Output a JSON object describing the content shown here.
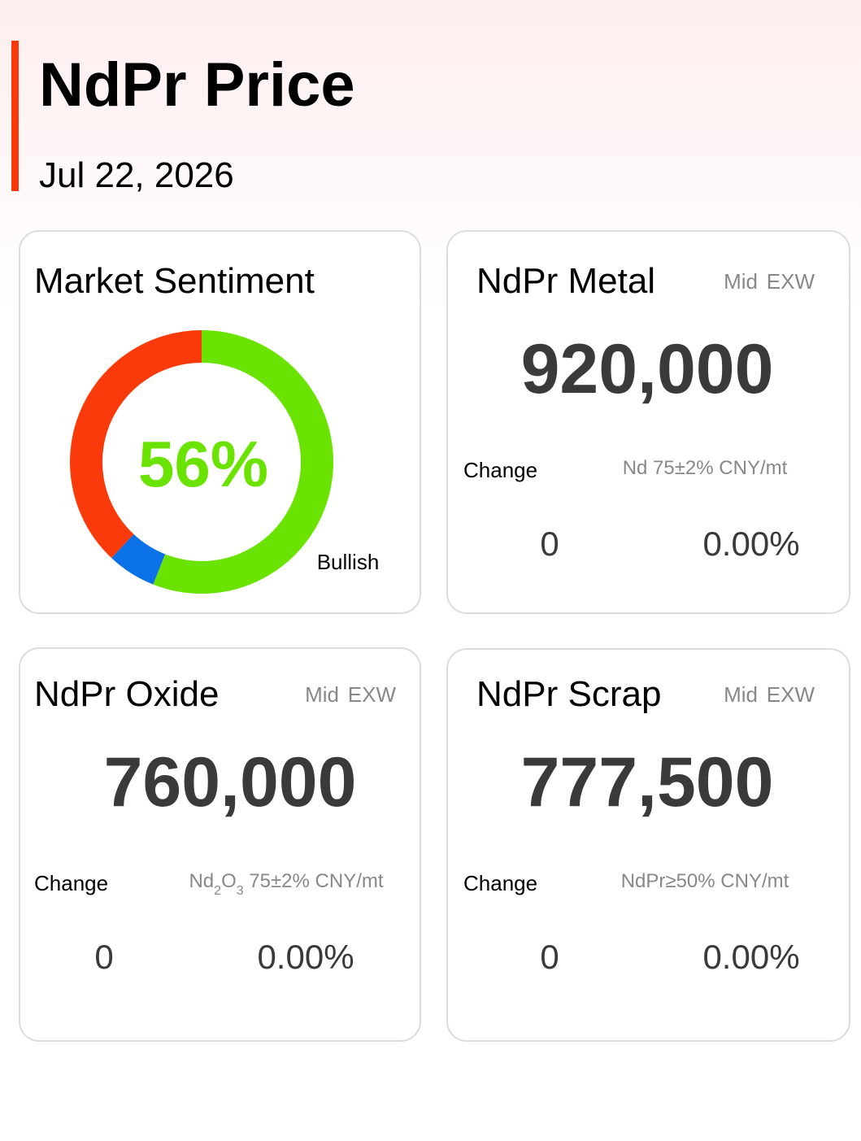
{
  "header": {
    "title": "NdPr Price",
    "date": "Jul 22, 2026"
  },
  "sentiment": {
    "title": "Market Sentiment",
    "center_label": "56%",
    "label": "Bullish",
    "segments": [
      {
        "value": 56,
        "color": "#6ae300"
      },
      {
        "value": 6,
        "color": "#0a72e6"
      },
      {
        "value": 38,
        "color": "#fa3a0a"
      }
    ]
  },
  "cards": [
    {
      "title": "NdPr Metal",
      "tags": [
        "Mid",
        "EXW"
      ],
      "price": "920,000",
      "change_label": "Change",
      "spec": [
        {
          "text": "Nd 75±2% CNY/mt"
        }
      ],
      "change": "0",
      "change_pct": "0.00%"
    },
    {
      "title": "NdPr Oxide",
      "tags": [
        "Mid",
        "EXW"
      ],
      "price": "760,000",
      "change_label": "Change",
      "spec": [
        {
          "text": "Nd"
        },
        {
          "text": "2",
          "sub": true
        },
        {
          "text": "O"
        },
        {
          "text": "3",
          "sub": true
        },
        {
          "text": " 75±2% CNY/mt"
        }
      ],
      "change": "0",
      "change_pct": "0.00%"
    },
    {
      "title": "NdPr Scrap",
      "tags": [
        "Mid",
        "EXW"
      ],
      "price": "777,500",
      "change_label": "Change",
      "spec": [
        {
          "text": "NdPr≥50% CNY/mt"
        }
      ],
      "change": "0",
      "change_pct": "0.00%"
    }
  ]
}
